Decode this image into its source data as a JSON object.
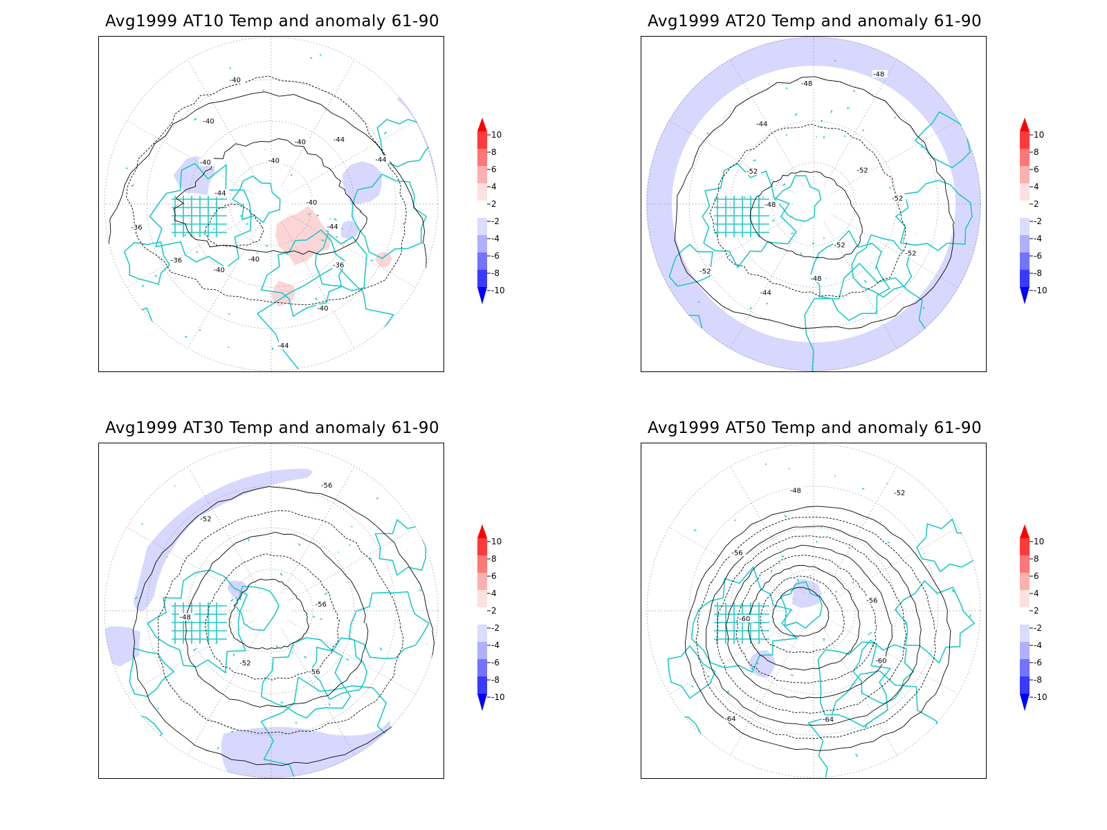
{
  "panels": [
    {
      "id": "at10",
      "title": "Avg1999 AT10 Temp and anomaly 61-90",
      "contour_labels": [
        "-40",
        "-44",
        "-36",
        "-40",
        "-44",
        "-40",
        "-40",
        "-36",
        "-36",
        "-44",
        "-40",
        "-40",
        "-40",
        "-40",
        "-40",
        "-44",
        "-44"
      ]
    },
    {
      "id": "at20",
      "title": "Avg1999 AT20 Temp and anomaly 61-90",
      "contour_labels": [
        "-52",
        "-48",
        "-44",
        "-52",
        "-48",
        "-52",
        "-44",
        "-48",
        "-48",
        "-52",
        "-52",
        "-52"
      ]
    },
    {
      "id": "at30",
      "title": "Avg1999 AT30 Temp and anomaly 61-90",
      "contour_labels": [
        "-52",
        "-48",
        "-52",
        "-56",
        "-56",
        "-56"
      ]
    },
    {
      "id": "at50",
      "title": "Avg1999 AT50 Temp and anomaly 61-90",
      "contour_labels": [
        "-60",
        "-56",
        "-48",
        "-52",
        "-56",
        "-60",
        "-64",
        "-64"
      ]
    }
  ],
  "colorbar": {
    "labels": [
      "10",
      "8",
      "6",
      "4",
      "2",
      "-2",
      "-4",
      "-6",
      "-8",
      "-10"
    ],
    "colors": [
      "#fd0000",
      "#fe3a3a",
      "#fd7777",
      "#fdb0b0",
      "#fde0e0",
      "#ffffff",
      "#dcdcff",
      "#b0b0fe",
      "#7373fe",
      "#3a3afe",
      "#0000fd"
    ]
  },
  "colors": {
    "coastline": "#1ec8c8",
    "contour": "#000000",
    "grid": "#888888",
    "warm_anomaly": "#fcd6d6",
    "cold_anomaly": "#d8d8fe"
  }
}
